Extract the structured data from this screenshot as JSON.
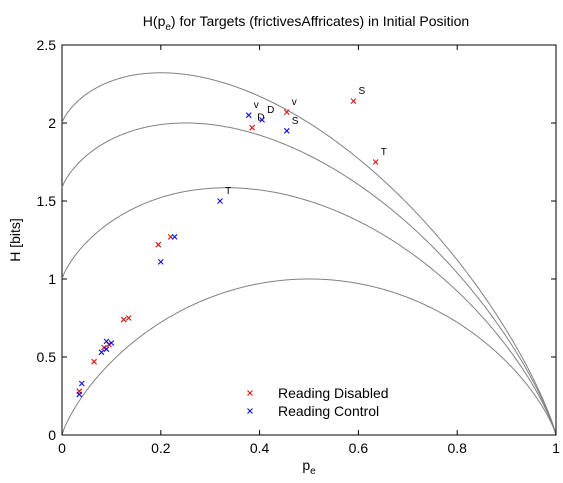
{
  "chart_data": {
    "type": "scatter",
    "title": "H(p_e) for Targets (frictivesAffricates) in Initial Position",
    "title_base": "H(p",
    "title_sub": "e",
    "title_rest": ") for Targets (frictivesAffricates) in Initial Position",
    "xlabel_base": "p",
    "xlabel_sub": "e",
    "ylabel": "H [bits]",
    "xlim": [
      0,
      1
    ],
    "ylim": [
      0,
      2.5
    ],
    "xticks": [
      0,
      0.2,
      0.4,
      0.6,
      0.8,
      1
    ],
    "xtick_labels": [
      "0",
      "0.2",
      "0.4",
      "0.6",
      "0.8",
      "1"
    ],
    "yticks": [
      0,
      0.5,
      1,
      1.5,
      2,
      2.5
    ],
    "ytick_labels": [
      "0",
      "0.5",
      "1",
      "1.5",
      "2",
      "2.5"
    ],
    "grid": false,
    "legend_position": "bottom-center",
    "curves": [
      {
        "alphabet_size": 2,
        "color": "#808080"
      },
      {
        "alphabet_size": 3,
        "color": "#808080"
      },
      {
        "alphabet_size": 4,
        "color": "#808080"
      },
      {
        "alphabet_size": 5,
        "color": "#808080"
      }
    ],
    "series": [
      {
        "name": "Reading Disabled",
        "color": "#e01010",
        "marker": "x",
        "points": [
          {
            "x": 0.035,
            "y": 0.28,
            "label": ""
          },
          {
            "x": 0.065,
            "y": 0.47,
            "label": ""
          },
          {
            "x": 0.085,
            "y": 0.56,
            "label": ""
          },
          {
            "x": 0.095,
            "y": 0.58,
            "label": ""
          },
          {
            "x": 0.125,
            "y": 0.74,
            "label": ""
          },
          {
            "x": 0.135,
            "y": 0.75,
            "label": ""
          },
          {
            "x": 0.195,
            "y": 1.22,
            "label": ""
          },
          {
            "x": 0.22,
            "y": 1.27,
            "label": ""
          },
          {
            "x": 0.385,
            "y": 1.97,
            "label": "D"
          },
          {
            "x": 0.455,
            "y": 2.07,
            "label": "v"
          },
          {
            "x": 0.59,
            "y": 2.14,
            "label": "S"
          },
          {
            "x": 0.635,
            "y": 1.75,
            "label": "T"
          }
        ]
      },
      {
        "name": "Reading Control",
        "color": "#1010e0",
        "marker": "x",
        "points": [
          {
            "x": 0.035,
            "y": 0.26,
            "label": ""
          },
          {
            "x": 0.04,
            "y": 0.33,
            "label": ""
          },
          {
            "x": 0.08,
            "y": 0.53,
            "label": ""
          },
          {
            "x": 0.09,
            "y": 0.6,
            "label": ""
          },
          {
            "x": 0.09,
            "y": 0.55,
            "label": ""
          },
          {
            "x": 0.1,
            "y": 0.59,
            "label": ""
          },
          {
            "x": 0.2,
            "y": 1.11,
            "label": ""
          },
          {
            "x": 0.228,
            "y": 1.27,
            "label": ""
          },
          {
            "x": 0.32,
            "y": 1.5,
            "label": "T"
          },
          {
            "x": 0.378,
            "y": 2.05,
            "label": "v"
          },
          {
            "x": 0.405,
            "y": 2.02,
            "label": "D"
          },
          {
            "x": 0.455,
            "y": 1.95,
            "label": "S"
          }
        ]
      }
    ]
  }
}
